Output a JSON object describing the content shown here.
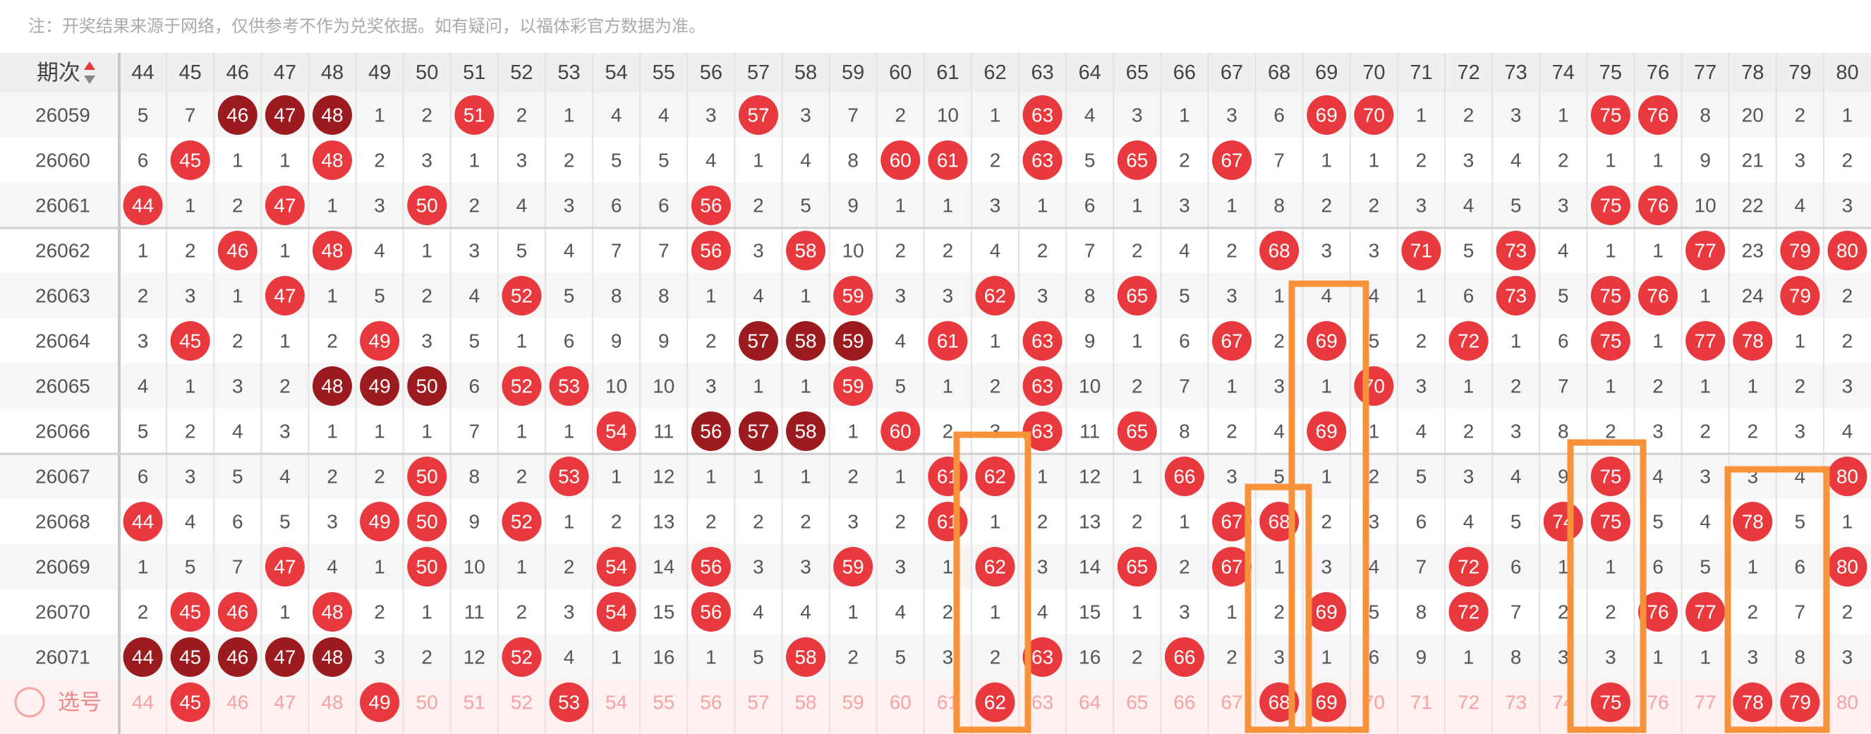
{
  "note": "注：开奖结果来源于网络，仅供参考不作为兑奖依据。如有疑问，以福体彩官方数据为准。",
  "table": {
    "header_label": "期次",
    "columns": [
      44,
      45,
      46,
      47,
      48,
      49,
      50,
      51,
      52,
      53,
      54,
      55,
      56,
      57,
      58,
      59,
      60,
      61,
      62,
      63,
      64,
      65,
      66,
      67,
      68,
      69,
      70,
      71,
      72,
      73,
      74,
      75,
      76,
      77,
      78,
      79,
      80
    ],
    "rows": [
      {
        "issue": "26059",
        "cells": [
          5,
          7,
          46,
          47,
          48,
          1,
          2,
          51,
          2,
          1,
          4,
          4,
          3,
          57,
          3,
          7,
          2,
          10,
          1,
          63,
          4,
          3,
          1,
          3,
          6,
          69,
          70,
          1,
          2,
          3,
          1,
          75,
          76,
          8,
          20,
          2,
          1
        ]
      },
      {
        "issue": "26060",
        "cells": [
          6,
          45,
          1,
          1,
          48,
          2,
          3,
          1,
          3,
          2,
          5,
          5,
          4,
          1,
          4,
          8,
          60,
          61,
          2,
          63,
          5,
          65,
          2,
          67,
          7,
          1,
          1,
          2,
          3,
          4,
          2,
          1,
          1,
          9,
          21,
          3,
          2
        ]
      },
      {
        "issue": "26061",
        "cells": [
          44,
          1,
          2,
          47,
          1,
          3,
          50,
          2,
          4,
          3,
          6,
          6,
          56,
          2,
          5,
          9,
          1,
          1,
          3,
          1,
          6,
          1,
          3,
          1,
          8,
          2,
          2,
          3,
          4,
          5,
          3,
          75,
          76,
          10,
          22,
          4,
          3
        ]
      },
      {
        "issue": "26062",
        "cells": [
          1,
          2,
          46,
          1,
          48,
          4,
          1,
          3,
          5,
          4,
          7,
          7,
          56,
          3,
          58,
          10,
          2,
          2,
          4,
          2,
          7,
          2,
          4,
          2,
          68,
          3,
          3,
          71,
          5,
          73,
          4,
          1,
          1,
          77,
          23,
          79,
          80
        ]
      },
      {
        "issue": "26063",
        "cells": [
          2,
          3,
          1,
          47,
          1,
          5,
          2,
          4,
          52,
          5,
          8,
          8,
          1,
          4,
          1,
          59,
          3,
          3,
          62,
          3,
          8,
          65,
          5,
          3,
          1,
          4,
          4,
          1,
          6,
          73,
          5,
          75,
          76,
          1,
          24,
          79,
          2
        ]
      },
      {
        "issue": "26064",
        "cells": [
          3,
          45,
          2,
          1,
          2,
          49,
          3,
          5,
          1,
          6,
          9,
          9,
          2,
          57,
          58,
          59,
          4,
          61,
          1,
          63,
          9,
          1,
          6,
          67,
          2,
          69,
          5,
          2,
          72,
          1,
          6,
          75,
          1,
          77,
          78,
          1,
          2
        ]
      },
      {
        "issue": "26065",
        "cells": [
          4,
          1,
          3,
          2,
          48,
          49,
          50,
          6,
          52,
          53,
          10,
          10,
          3,
          1,
          1,
          59,
          5,
          1,
          2,
          63,
          10,
          2,
          7,
          1,
          3,
          1,
          70,
          3,
          1,
          2,
          7,
          1,
          2,
          1,
          1,
          2,
          3
        ]
      },
      {
        "issue": "26066",
        "cells": [
          5,
          2,
          4,
          3,
          1,
          1,
          1,
          7,
          1,
          1,
          54,
          11,
          56,
          57,
          58,
          1,
          60,
          2,
          3,
          63,
          11,
          65,
          8,
          2,
          4,
          69,
          1,
          4,
          2,
          3,
          8,
          2,
          3,
          2,
          2,
          3,
          4
        ]
      },
      {
        "issue": "26067",
        "cells": [
          6,
          3,
          5,
          4,
          2,
          2,
          50,
          8,
          2,
          53,
          1,
          12,
          1,
          1,
          1,
          2,
          1,
          61,
          62,
          1,
          12,
          1,
          66,
          3,
          5,
          1,
          2,
          5,
          3,
          4,
          9,
          75,
          4,
          3,
          3,
          4,
          80
        ]
      },
      {
        "issue": "26068",
        "cells": [
          44,
          4,
          6,
          5,
          3,
          49,
          50,
          9,
          52,
          1,
          2,
          13,
          2,
          2,
          2,
          3,
          2,
          61,
          1,
          2,
          13,
          2,
          1,
          67,
          68,
          2,
          3,
          6,
          4,
          5,
          74,
          75,
          5,
          4,
          78,
          5,
          1
        ]
      },
      {
        "issue": "26069",
        "cells": [
          1,
          5,
          7,
          47,
          4,
          1,
          50,
          10,
          1,
          2,
          54,
          14,
          56,
          3,
          3,
          59,
          3,
          1,
          62,
          3,
          14,
          65,
          2,
          67,
          1,
          3,
          4,
          7,
          72,
          6,
          1,
          1,
          6,
          5,
          1,
          6,
          80
        ]
      },
      {
        "issue": "26070",
        "cells": [
          2,
          45,
          46,
          1,
          48,
          2,
          1,
          11,
          2,
          3,
          54,
          15,
          56,
          4,
          4,
          1,
          4,
          2,
          1,
          4,
          15,
          1,
          3,
          1,
          2,
          69,
          5,
          8,
          72,
          7,
          2,
          2,
          76,
          77,
          2,
          7,
          2
        ]
      },
      {
        "issue": "26071",
        "cells": [
          44,
          45,
          46,
          47,
          48,
          3,
          2,
          12,
          52,
          4,
          1,
          16,
          1,
          5,
          58,
          2,
          5,
          3,
          2,
          63,
          16,
          2,
          66,
          2,
          3,
          1,
          6,
          9,
          1,
          8,
          3,
          3,
          1,
          1,
          3,
          8,
          3
        ]
      }
    ],
    "pick_row": {
      "label": "选号",
      "selected": [
        45,
        49,
        53,
        62,
        68,
        69,
        75,
        78,
        79
      ]
    }
  },
  "style": {
    "ball_color": "#e8393f",
    "run_color": "#9c1b1f",
    "pick_color": "#f5a3a3"
  }
}
